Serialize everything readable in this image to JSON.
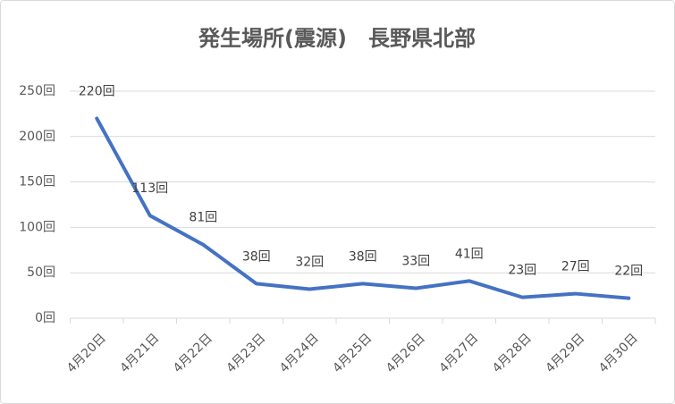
{
  "chart_data": {
    "type": "line",
    "title": "発生場所(震源)　長野県北部",
    "categories": [
      "4月20日",
      "4月21日",
      "4月22日",
      "4月23日",
      "4月24日",
      "4月25日",
      "4月26日",
      "4月27日",
      "4月28日",
      "4月29日",
      "4月30日"
    ],
    "values": [
      220,
      113,
      81,
      38,
      32,
      38,
      33,
      41,
      23,
      27,
      22
    ],
    "value_labels": [
      "220回",
      "113回",
      "81回",
      "38回",
      "32回",
      "38回",
      "33回",
      "41回",
      "23回",
      "27回",
      "22回"
    ],
    "color": "#4472c4",
    "ylim": [
      0,
      250
    ],
    "yticks": [
      {
        "value": 0,
        "label": "0回"
      },
      {
        "value": 50,
        "label": "50回"
      },
      {
        "value": 100,
        "label": "100回"
      },
      {
        "value": 150,
        "label": "150回"
      },
      {
        "value": 200,
        "label": "200回"
      },
      {
        "value": 250,
        "label": "250回"
      }
    ],
    "grid": true
  }
}
